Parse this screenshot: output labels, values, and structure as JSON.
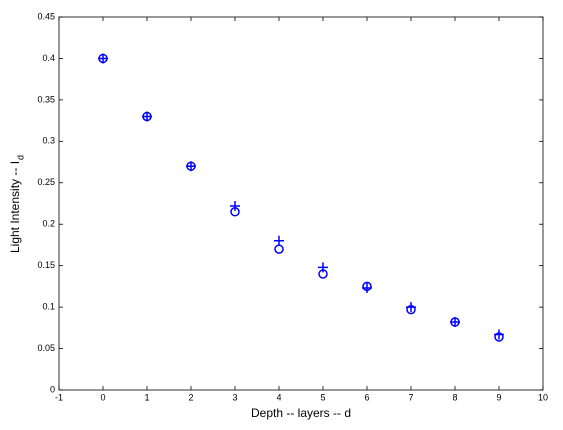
{
  "chart_data": {
    "type": "scatter",
    "xlabel": "Depth -- layers -- d",
    "ylabel": "Light Intensity -- I",
    "ylabel_subscript": "d",
    "x": [
      0,
      1,
      2,
      3,
      4,
      5,
      6,
      7,
      8,
      9
    ],
    "series": [
      {
        "color": "#0000ff",
        "marker": "+",
        "values": [
          0.4,
          0.33,
          0.27,
          0.222,
          0.18,
          0.148,
          0.123,
          0.1,
          0.082,
          0.067
        ]
      },
      {
        "color": "#0000ff",
        "marker": "o",
        "values": [
          0.4,
          0.33,
          0.27,
          0.215,
          0.17,
          0.14,
          0.125,
          0.097,
          0.082,
          0.064
        ]
      }
    ],
    "xlim": [
      -1,
      10
    ],
    "xticks": [
      -1,
      0,
      1,
      2,
      3,
      4,
      5,
      6,
      7,
      8,
      9,
      10
    ],
    "ylim": [
      0,
      0.45
    ],
    "yticks": [
      0,
      0.05,
      0.1,
      0.15,
      0.2,
      0.25,
      0.3,
      0.35,
      0.4,
      0.45
    ],
    "grid": false
  }
}
